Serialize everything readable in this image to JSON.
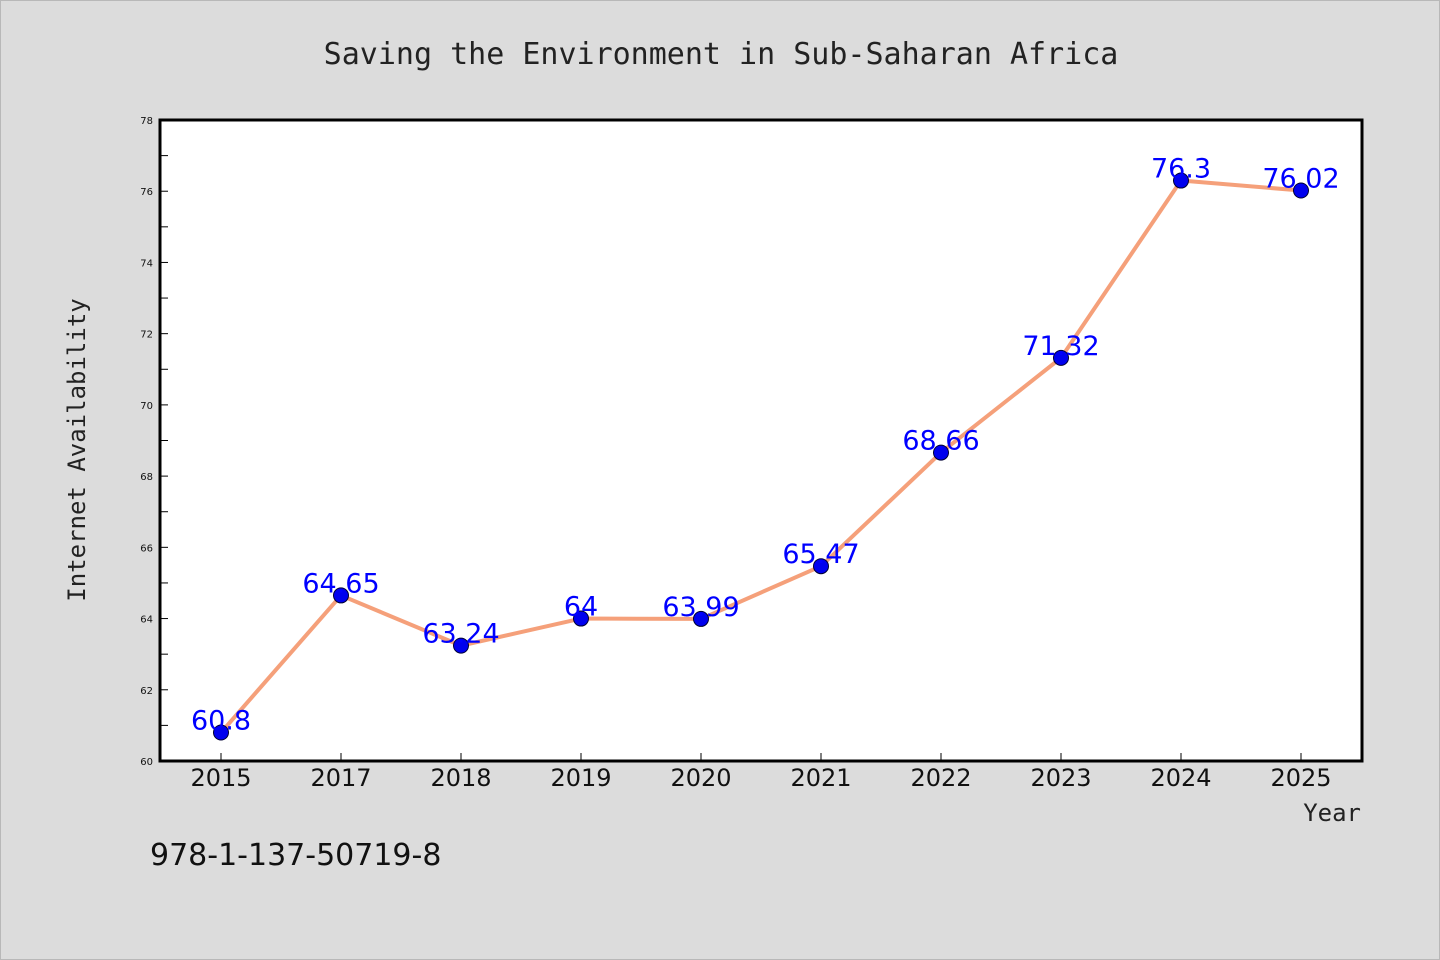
{
  "chart_data": {
    "type": "line",
    "title": "Saving the Environment in Sub-Saharan Africa",
    "xlabel": "Year",
    "ylabel": "Internet Availability",
    "categories": [
      "2015",
      "2017",
      "2018",
      "2019",
      "2020",
      "2021",
      "2022",
      "2023",
      "2024",
      "2025"
    ],
    "series": [
      {
        "values": [
          60.8,
          64.65,
          63.24,
          64,
          63.99,
          65.47,
          68.66,
          71.32,
          76.3,
          76.02
        ],
        "labels": [
          "60.8",
          "64.65",
          "63.24",
          "64",
          "63.99",
          "65.47",
          "68.66",
          "71.32",
          "76.3",
          "76.02"
        ],
        "line_color": "#f5a07a",
        "marker_color": "#0000ee"
      }
    ],
    "ylim": [
      60,
      78
    ],
    "y_ticks": [
      "60",
      "62",
      "64",
      "66",
      "68",
      "70",
      "72",
      "74",
      "76",
      "78"
    ],
    "grid": false,
    "legend": "none"
  },
  "footer": {
    "code": "978-1-137-50719-8"
  },
  "colors": {
    "background": "#dcdcdc",
    "plot_background": "#ffffff",
    "label_color": "#0000ff"
  }
}
